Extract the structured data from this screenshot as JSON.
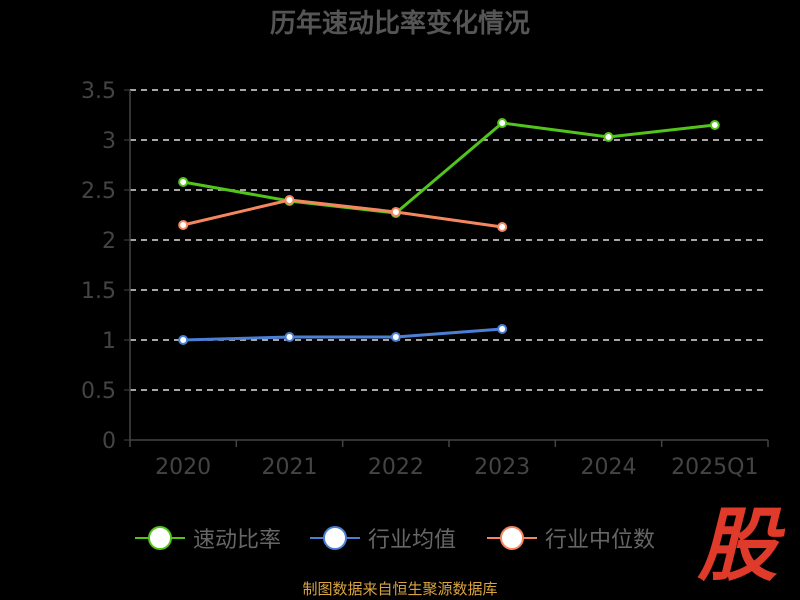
{
  "chart_data": {
    "type": "line",
    "title": "历年速动比率变化情况",
    "categories": [
      "2020",
      "2021",
      "2022",
      "2023",
      "2024",
      "2025Q1"
    ],
    "ylim": [
      0,
      3.5
    ],
    "yticks": [
      "0",
      "0.5",
      "1",
      "1.5",
      "2",
      "2.5",
      "3",
      "3.5"
    ],
    "grid": true,
    "legend_position": "bottom",
    "series": [
      {
        "name": "速动比率",
        "color": "#52c41a",
        "values": [
          2.58,
          2.39,
          2.27,
          3.17,
          3.03,
          3.15
        ]
      },
      {
        "name": "行业均值",
        "color": "#4a7fd4",
        "values": [
          1.0,
          1.03,
          1.03,
          1.11,
          null,
          null
        ]
      },
      {
        "name": "行业中位数",
        "color": "#f4875f",
        "values": [
          2.15,
          2.4,
          2.28,
          2.13,
          null,
          null
        ]
      }
    ]
  },
  "source": "制图数据来自恒生聚源数据库",
  "logo_text": "股"
}
